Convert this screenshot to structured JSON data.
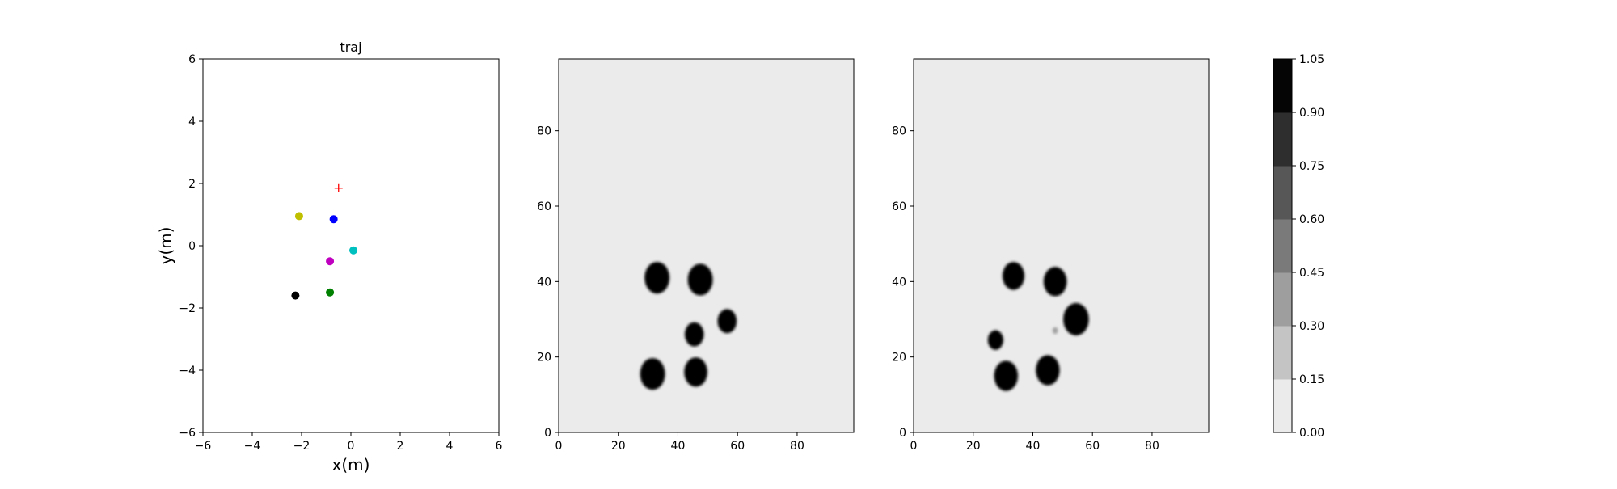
{
  "chart_data": [
    {
      "type": "scatter",
      "title": "traj",
      "xlabel": "x(m)",
      "ylabel": "y(m)",
      "xlim": [
        -6,
        6
      ],
      "ylim": [
        -6,
        6
      ],
      "xticks": [
        "−6",
        "−4",
        "−2",
        "0",
        "2",
        "4",
        "6"
      ],
      "yticks": [
        "−6",
        "−4",
        "−2",
        "0",
        "2",
        "4",
        "6"
      ],
      "points": [
        {
          "x": -2.1,
          "y": 0.95,
          "color": "#bfbf00",
          "marker": "circle"
        },
        {
          "x": -0.7,
          "y": 0.85,
          "color": "#0000ff",
          "marker": "circle"
        },
        {
          "x": 0.1,
          "y": -0.15,
          "color": "#00bfbf",
          "marker": "circle"
        },
        {
          "x": -0.85,
          "y": -0.5,
          "color": "#bf00bf",
          "marker": "circle"
        },
        {
          "x": -0.85,
          "y": -1.5,
          "color": "#008000",
          "marker": "circle"
        },
        {
          "x": -2.25,
          "y": -1.6,
          "color": "#000000",
          "marker": "circle"
        },
        {
          "x": -0.5,
          "y": 1.85,
          "color": "#ff0000",
          "marker": "plus"
        }
      ],
      "grid": false
    },
    {
      "type": "heatmap",
      "xlim": [
        0,
        99
      ],
      "ylim": [
        0,
        99
      ],
      "xticks": [
        "0",
        "20",
        "40",
        "60",
        "80"
      ],
      "yticks": [
        "0",
        "20",
        "40",
        "60",
        "80"
      ],
      "background_value": 0.05,
      "blobs": [
        {
          "x": 33,
          "y": 41,
          "r": 4.2,
          "value": 1.0
        },
        {
          "x": 47.5,
          "y": 40.5,
          "r": 4.2,
          "value": 1.0
        },
        {
          "x": 56.5,
          "y": 29.5,
          "r": 3.2,
          "value": 1.0
        },
        {
          "x": 45.5,
          "y": 26,
          "r": 3.2,
          "value": 1.0
        },
        {
          "x": 31.5,
          "y": 15.5,
          "r": 4.2,
          "value": 1.0
        },
        {
          "x": 46,
          "y": 16,
          "r": 3.9,
          "value": 1.0
        }
      ]
    },
    {
      "type": "heatmap",
      "xlim": [
        0,
        99
      ],
      "ylim": [
        0,
        99
      ],
      "xticks": [
        "0",
        "20",
        "40",
        "60",
        "80"
      ],
      "yticks": [
        "0",
        "20",
        "40",
        "60",
        "80"
      ],
      "background_value": 0.05,
      "blobs": [
        {
          "x": 33.5,
          "y": 41.5,
          "r": 3.7,
          "value": 1.0
        },
        {
          "x": 47.5,
          "y": 40,
          "r": 3.9,
          "value": 1.0
        },
        {
          "x": 54.5,
          "y": 30,
          "r": 4.3,
          "value": 1.0
        },
        {
          "x": 27.5,
          "y": 24.5,
          "r": 2.6,
          "value": 0.9
        },
        {
          "x": 31,
          "y": 15,
          "r": 4.0,
          "value": 1.0
        },
        {
          "x": 45,
          "y": 16.5,
          "r": 4.0,
          "value": 1.0
        },
        {
          "x": 47.5,
          "y": 27,
          "r": 0.9,
          "value": 0.3
        }
      ]
    },
    {
      "type": "colorbar",
      "levels": [
        "0.00",
        "0.15",
        "0.30",
        "0.45",
        "0.60",
        "0.75",
        "0.90",
        "1.05"
      ],
      "colors": [
        "#ebebeb",
        "#c4c4c4",
        "#9e9e9e",
        "#7a7a7a",
        "#575757",
        "#2e2e2e",
        "#050505"
      ]
    }
  ]
}
